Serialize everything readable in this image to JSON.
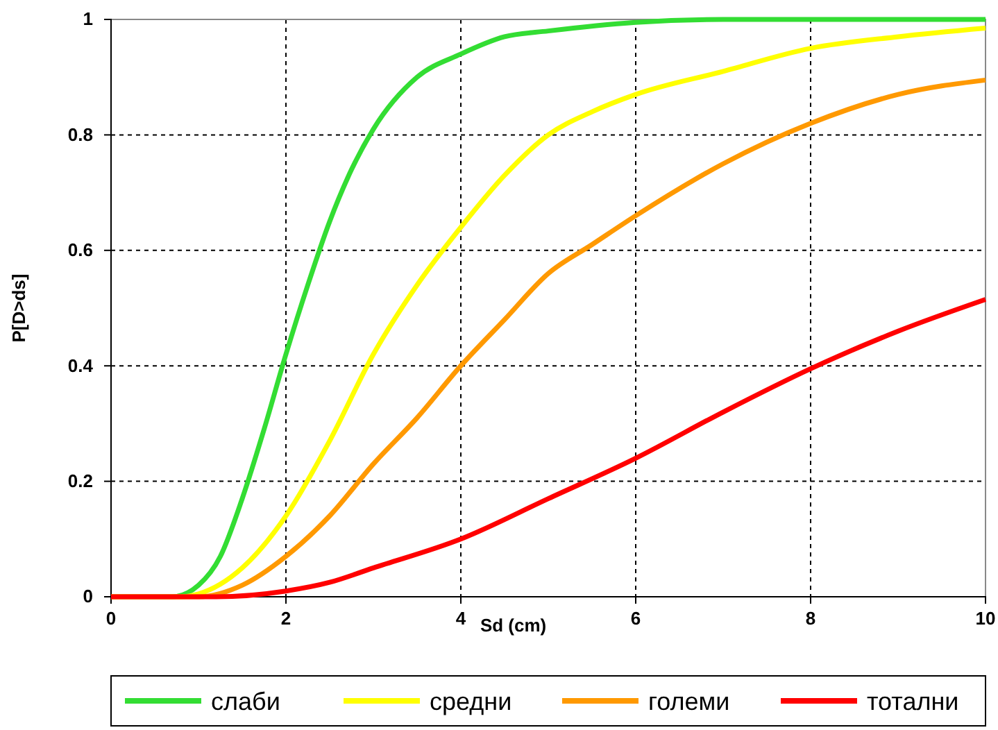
{
  "chart_data": {
    "type": "line",
    "xlabel": "Sd (cm)",
    "ylabel": "P[D>ds]",
    "xlim": [
      0,
      10
    ],
    "xticks": [
      0,
      2,
      4,
      6,
      8,
      10
    ],
    "ylim": [
      0,
      1
    ],
    "yticks": [
      0,
      0.2,
      0.4,
      0.6,
      0.8,
      1
    ],
    "grid": true,
    "legend": "bottom",
    "marker": "none",
    "line_style": "solid",
    "series": [
      {
        "name": "слаби",
        "color": "#33dd33",
        "x": [
          0,
          0.7,
          1,
          1.25,
          1.5,
          1.75,
          2,
          2.25,
          2.5,
          2.75,
          3,
          3.5,
          4,
          4.5,
          5,
          6,
          7,
          10
        ],
        "values": [
          0,
          0,
          0.02,
          0.07,
          0.17,
          0.29,
          0.42,
          0.54,
          0.65,
          0.74,
          0.81,
          0.9,
          0.94,
          0.97,
          0.98,
          0.995,
          1,
          1
        ]
      },
      {
        "name": "средни",
        "color": "#ffff00",
        "x": [
          0,
          0.8,
          1,
          1.5,
          2,
          2.5,
          3,
          3.5,
          4,
          4.5,
          5,
          5.5,
          6,
          7,
          8,
          9,
          10
        ],
        "values": [
          0,
          0,
          0.005,
          0.05,
          0.14,
          0.27,
          0.42,
          0.54,
          0.64,
          0.73,
          0.8,
          0.84,
          0.87,
          0.91,
          0.95,
          0.97,
          0.985
        ]
      },
      {
        "name": "големи",
        "color": "#ff9900",
        "x": [
          0,
          1,
          1.5,
          2,
          2.5,
          3,
          3.5,
          4,
          4.5,
          5,
          5.5,
          6,
          7,
          8,
          9,
          10
        ],
        "values": [
          0,
          0,
          0.02,
          0.07,
          0.14,
          0.23,
          0.31,
          0.4,
          0.48,
          0.56,
          0.61,
          0.66,
          0.75,
          0.82,
          0.87,
          0.895
        ]
      },
      {
        "name": "тотални",
        "color": "#ff0000",
        "x": [
          0,
          1.2,
          2,
          2.5,
          3,
          4,
          5,
          6,
          7,
          8,
          9,
          10
        ],
        "values": [
          0,
          0,
          0.01,
          0.025,
          0.05,
          0.1,
          0.17,
          0.24,
          0.32,
          0.395,
          0.46,
          0.515
        ]
      }
    ]
  }
}
